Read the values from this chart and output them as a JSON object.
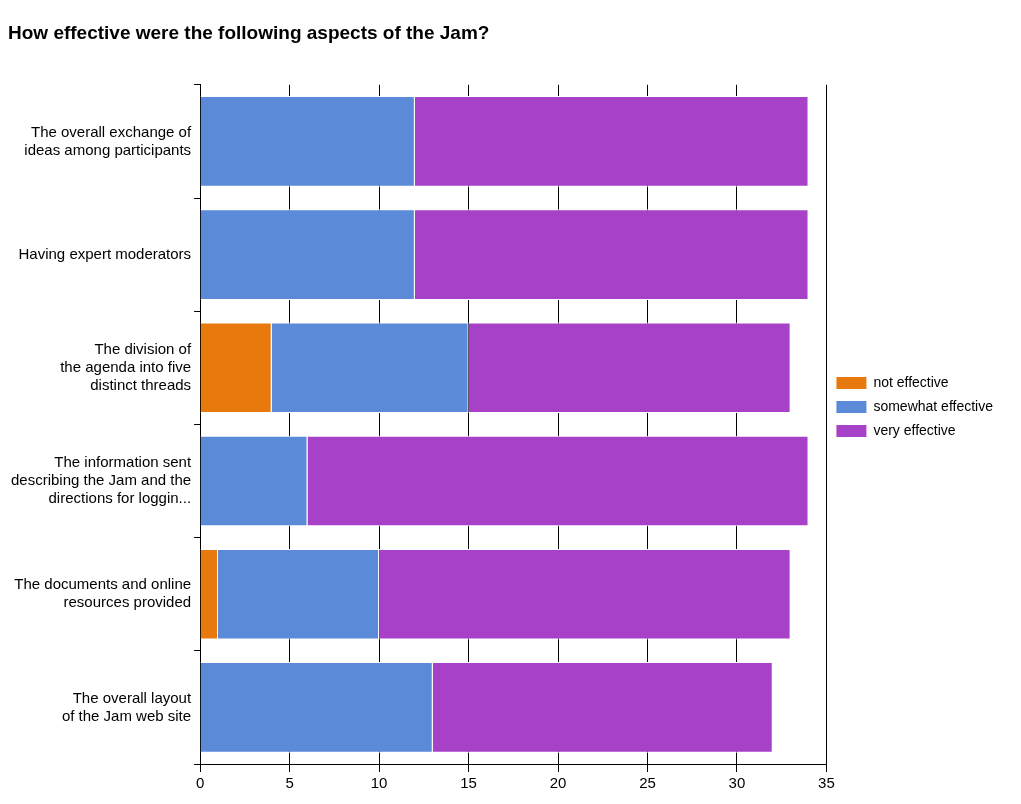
{
  "chart_data": {
    "type": "bar",
    "title": "How effective were the following aspects of the Jam?",
    "orientation": "horizontal",
    "stacked": true,
    "categories": [
      "The overall exchange of\nideas among participants",
      "Having expert moderators",
      "The division of\nthe agenda into five\ndistinct threads",
      "The information sent\ndescribing the Jam and the\ndirections for loggin...",
      "The documents and online\nresources provided",
      "The overall layout\nof the Jam web site"
    ],
    "series": [
      {
        "name": "not effective",
        "color": "#e8790c",
        "values": [
          0,
          0,
          4,
          0,
          1,
          0
        ]
      },
      {
        "name": "somewhat effective",
        "color": "#5a8ad8",
        "values": [
          12,
          12,
          11,
          6,
          9,
          13
        ]
      },
      {
        "name": "very effective",
        "color": "#a742c8",
        "values": [
          22,
          22,
          18,
          28,
          23,
          19
        ]
      }
    ],
    "xlim": [
      0,
      35
    ],
    "xticks": [
      0,
      5,
      10,
      15,
      20,
      25,
      30,
      35
    ],
    "grid": "x",
    "legend": "right"
  }
}
